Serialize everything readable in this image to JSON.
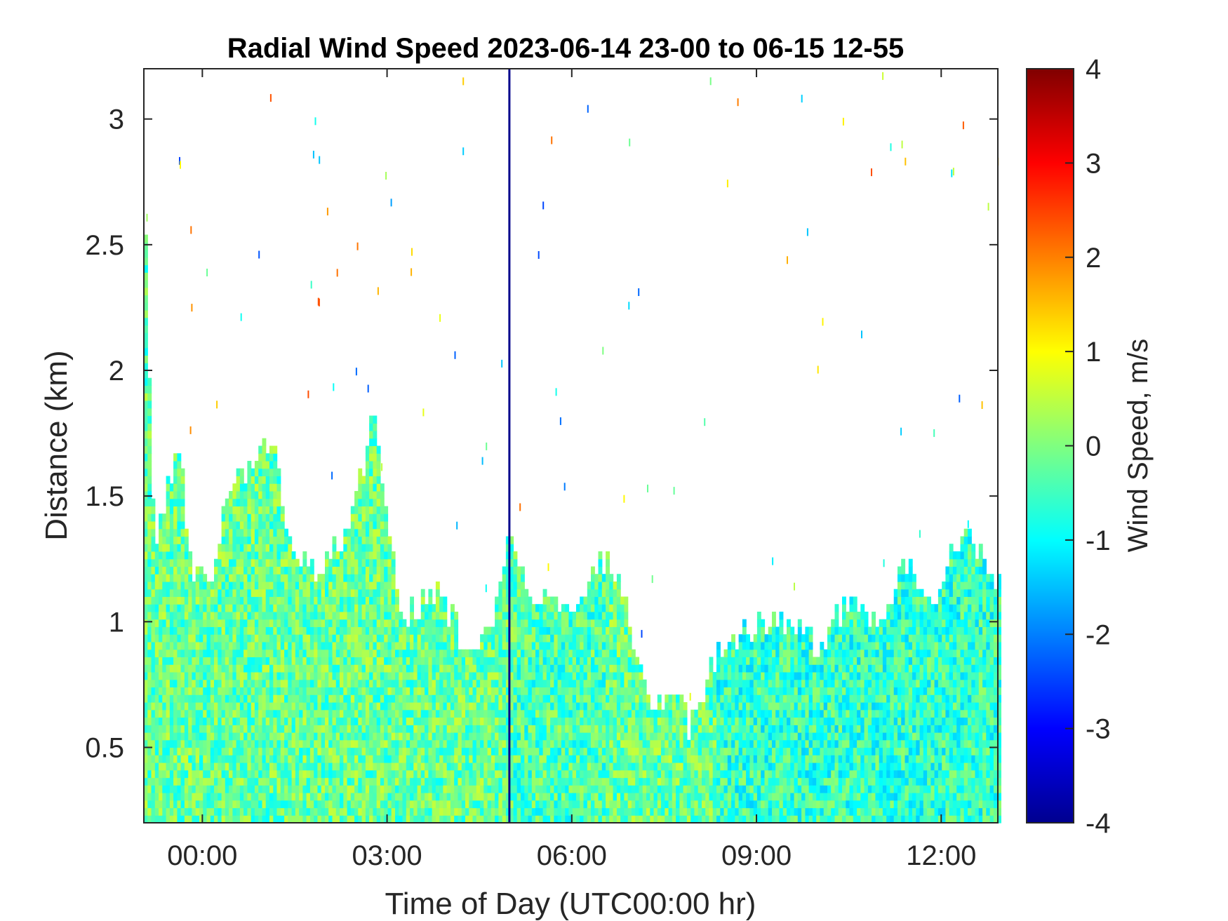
{
  "chart_data": {
    "type": "heatmap",
    "title": "Radial Wind Speed 2023-06-14 23-00 to 06-15 12-55",
    "xlabel": "Time of Day (UTC00:00 hr)",
    "ylabel": "Distance (km)",
    "colorbar_label": "Wind Speed, m/s",
    "colormap": "jet",
    "xlim_hours": [
      -0.95,
      12.92
    ],
    "ylim": [
      0.2,
      3.2
    ],
    "clim": [
      -4,
      4
    ],
    "x_ticks": [
      {
        "value": 0,
        "label": "00:00"
      },
      {
        "value": 3,
        "label": "03:00"
      },
      {
        "value": 6,
        "label": "06:00"
      },
      {
        "value": 9,
        "label": "09:00"
      },
      {
        "value": 12,
        "label": "12:00"
      }
    ],
    "y_ticks": [
      {
        "value": 0.5,
        "label": "0.5"
      },
      {
        "value": 1,
        "label": "1"
      },
      {
        "value": 1.5,
        "label": "1.5"
      },
      {
        "value": 2,
        "label": "2"
      },
      {
        "value": 2.5,
        "label": "2.5"
      },
      {
        "value": 3,
        "label": "3"
      }
    ],
    "colorbar_ticks": [
      {
        "value": 4,
        "label": "4"
      },
      {
        "value": 3,
        "label": "3"
      },
      {
        "value": 2,
        "label": "2"
      },
      {
        "value": 1,
        "label": "1"
      },
      {
        "value": 0,
        "label": "0"
      },
      {
        "value": -1,
        "label": "-1"
      },
      {
        "value": -2,
        "label": "-2"
      },
      {
        "value": -3,
        "label": "-3"
      },
      {
        "value": -4,
        "label": "-4"
      }
    ],
    "signal_top_km": [
      {
        "x": -0.95,
        "y": 2.5
      },
      {
        "x": -0.8,
        "y": 1.2
      },
      {
        "x": -0.6,
        "y": 1.55
      },
      {
        "x": -0.4,
        "y": 1.7
      },
      {
        "x": -0.2,
        "y": 1.15
      },
      {
        "x": 0.1,
        "y": 1.15
      },
      {
        "x": 0.4,
        "y": 1.5
      },
      {
        "x": 0.8,
        "y": 1.6
      },
      {
        "x": 1.1,
        "y": 1.7
      },
      {
        "x": 1.4,
        "y": 1.3
      },
      {
        "x": 1.8,
        "y": 1.2
      },
      {
        "x": 2.2,
        "y": 1.3
      },
      {
        "x": 2.5,
        "y": 1.5
      },
      {
        "x": 2.75,
        "y": 1.8
      },
      {
        "x": 3.0,
        "y": 1.35
      },
      {
        "x": 3.2,
        "y": 1.0
      },
      {
        "x": 3.5,
        "y": 1.05
      },
      {
        "x": 3.8,
        "y": 1.1
      },
      {
        "x": 4.1,
        "y": 0.95
      },
      {
        "x": 4.4,
        "y": 0.85
      },
      {
        "x": 4.7,
        "y": 1.0
      },
      {
        "x": 4.95,
        "y": 1.3
      },
      {
        "x": 5.3,
        "y": 1.1
      },
      {
        "x": 5.7,
        "y": 1.05
      },
      {
        "x": 6.1,
        "y": 1.1
      },
      {
        "x": 6.6,
        "y": 1.25
      },
      {
        "x": 7.0,
        "y": 0.9
      },
      {
        "x": 7.3,
        "y": 0.65
      },
      {
        "x": 7.6,
        "y": 0.75
      },
      {
        "x": 7.9,
        "y": 0.55
      },
      {
        "x": 8.3,
        "y": 0.85
      },
      {
        "x": 8.8,
        "y": 0.95
      },
      {
        "x": 9.4,
        "y": 1.0
      },
      {
        "x": 10.0,
        "y": 0.88
      },
      {
        "x": 10.5,
        "y": 1.1
      },
      {
        "x": 11.0,
        "y": 0.95
      },
      {
        "x": 11.4,
        "y": 1.25
      },
      {
        "x": 11.9,
        "y": 1.05
      },
      {
        "x": 12.2,
        "y": 1.3
      },
      {
        "x": 12.6,
        "y": 1.3
      },
      {
        "x": 12.92,
        "y": 1.15
      }
    ]
  }
}
